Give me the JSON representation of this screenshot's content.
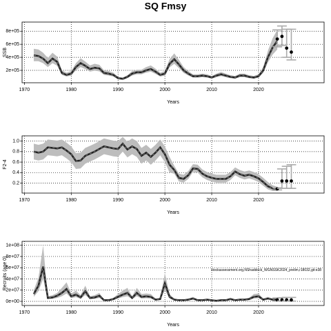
{
  "title": "SQ Fmsy",
  "chart_data": [
    {
      "type": "line",
      "xlabel": "Years",
      "ylabel": "SSB",
      "xlim": [
        1969.5,
        2034
      ],
      "xticks": [
        1970,
        1980,
        1990,
        2000,
        2010,
        2020
      ],
      "ylim": [
        10000,
        940000
      ],
      "yticks": [
        {
          "value": 200000,
          "label": "2e+05"
        },
        {
          "value": 400000,
          "label": "4e+05"
        },
        {
          "value": 600000,
          "label": "6e+05"
        },
        {
          "value": 800000,
          "label": "8e+05"
        }
      ],
      "grid": true,
      "color": "#222222",
      "band_color": "#bdbdbd",
      "x": [
        1972,
        1973,
        1974,
        1975,
        1976,
        1977,
        1978,
        1979,
        1980,
        1981,
        1982,
        1983,
        1984,
        1985,
        1986,
        1987,
        1988,
        1989,
        1990,
        1991,
        1992,
        1993,
        1994,
        1995,
        1996,
        1997,
        1998,
        1999,
        2000,
        2001,
        2002,
        2003,
        2004,
        2005,
        2006,
        2007,
        2008,
        2009,
        2010,
        2011,
        2012,
        2013,
        2014,
        2015,
        2016,
        2017,
        2018,
        2019,
        2020,
        2021,
        2022,
        2023,
        2024
      ],
      "values": [
        430000,
        420000,
        380000,
        310000,
        380000,
        330000,
        160000,
        130000,
        150000,
        250000,
        310000,
        270000,
        220000,
        240000,
        230000,
        160000,
        150000,
        130000,
        80000,
        70000,
        100000,
        150000,
        170000,
        170000,
        200000,
        220000,
        180000,
        130000,
        150000,
        300000,
        370000,
        290000,
        200000,
        150000,
        110000,
        110000,
        120000,
        110000,
        90000,
        120000,
        140000,
        120000,
        100000,
        90000,
        120000,
        120000,
        100000,
        90000,
        110000,
        200000,
        400000,
        550000,
        650000
      ],
      "lower": [
        340000,
        340000,
        310000,
        250000,
        310000,
        270000,
        130000,
        105000,
        120000,
        200000,
        250000,
        220000,
        180000,
        195000,
        185000,
        130000,
        120000,
        105000,
        65000,
        55000,
        80000,
        120000,
        140000,
        140000,
        165000,
        180000,
        145000,
        105000,
        120000,
        245000,
        300000,
        235000,
        160000,
        120000,
        90000,
        90000,
        95000,
        90000,
        72000,
        95000,
        112000,
        95000,
        80000,
        72000,
        95000,
        95000,
        80000,
        72000,
        88000,
        160000,
        320000,
        440000,
        520000
      ],
      "upper": [
        530000,
        520000,
        470000,
        390000,
        470000,
        410000,
        200000,
        165000,
        190000,
        310000,
        385000,
        335000,
        275000,
        300000,
        285000,
        200000,
        190000,
        165000,
        100000,
        90000,
        125000,
        190000,
        210000,
        210000,
        250000,
        275000,
        225000,
        165000,
        190000,
        370000,
        460000,
        360000,
        250000,
        190000,
        140000,
        140000,
        150000,
        140000,
        115000,
        150000,
        175000,
        150000,
        125000,
        115000,
        150000,
        150000,
        125000,
        115000,
        140000,
        250000,
        500000,
        690000,
        820000
      ],
      "points": {
        "x": [
          2024,
          2025,
          2026,
          2027
        ],
        "values": [
          680000,
          720000,
          540000,
          480000
        ],
        "lower": [
          560000,
          580000,
          400000,
          360000
        ],
        "upper": [
          820000,
          880000,
          830000,
          830000
        ]
      }
    },
    {
      "type": "line",
      "xlabel": "Years",
      "ylabel": "F2-4",
      "xlim": [
        1969.5,
        2034
      ],
      "xticks": [
        1970,
        1980,
        1990,
        2000,
        2010,
        2020
      ],
      "ylim": [
        0.01,
        1.1
      ],
      "yticks": [
        0.2,
        0.4,
        0.6,
        0.8,
        {
          "value": 1,
          "label": "1.0"
        }
      ],
      "grid": true,
      "color": "#222222",
      "band_color": "#bdbdbd",
      "x": [
        1972,
        1973,
        1974,
        1975,
        1976,
        1977,
        1978,
        1979,
        1980,
        1981,
        1982,
        1983,
        1984,
        1985,
        1986,
        1987,
        1988,
        1989,
        1990,
        1991,
        1992,
        1993,
        1994,
        1995,
        1996,
        1997,
        1998,
        1999,
        2000,
        2001,
        2002,
        2003,
        2004,
        2005,
        2006,
        2007,
        2008,
        2009,
        2010,
        2011,
        2012,
        2013,
        2014,
        2015,
        2016,
        2017,
        2018,
        2019,
        2020,
        2021,
        2022,
        2023,
        2024
      ],
      "values": [
        0.8,
        0.78,
        0.8,
        0.88,
        0.87,
        0.86,
        0.88,
        0.82,
        0.75,
        0.62,
        0.63,
        0.72,
        0.76,
        0.8,
        0.85,
        0.9,
        0.88,
        0.86,
        0.85,
        0.95,
        0.84,
        0.9,
        0.85,
        0.72,
        0.78,
        0.7,
        0.78,
        0.88,
        0.75,
        0.55,
        0.45,
        0.3,
        0.28,
        0.35,
        0.48,
        0.47,
        0.38,
        0.33,
        0.3,
        0.28,
        0.28,
        0.28,
        0.33,
        0.42,
        0.37,
        0.34,
        0.36,
        0.33,
        0.29,
        0.22,
        0.14,
        0.1,
        0.09
      ],
      "lower": [
        0.65,
        0.63,
        0.65,
        0.73,
        0.72,
        0.71,
        0.73,
        0.67,
        0.6,
        0.47,
        0.48,
        0.57,
        0.61,
        0.65,
        0.7,
        0.75,
        0.73,
        0.71,
        0.7,
        0.8,
        0.69,
        0.75,
        0.7,
        0.57,
        0.63,
        0.55,
        0.63,
        0.73,
        0.6,
        0.4,
        0.38,
        0.23,
        0.21,
        0.28,
        0.41,
        0.4,
        0.31,
        0.26,
        0.23,
        0.21,
        0.21,
        0.21,
        0.26,
        0.35,
        0.3,
        0.27,
        0.29,
        0.26,
        0.22,
        0.15,
        0.08,
        0.05,
        0.05
      ],
      "upper": [
        0.95,
        0.93,
        0.95,
        1.03,
        1.02,
        1.01,
        1.03,
        0.97,
        0.9,
        0.77,
        0.78,
        0.87,
        0.91,
        0.95,
        1.0,
        1.05,
        1.03,
        1.01,
        1.0,
        1.08,
        0.99,
        1.05,
        1.0,
        0.87,
        0.93,
        0.85,
        0.93,
        1.03,
        0.9,
        0.7,
        0.53,
        0.38,
        0.36,
        0.43,
        0.56,
        0.55,
        0.46,
        0.41,
        0.38,
        0.36,
        0.36,
        0.36,
        0.41,
        0.5,
        0.45,
        0.42,
        0.44,
        0.41,
        0.37,
        0.3,
        0.22,
        0.16,
        0.13
      ],
      "points": {
        "x": [
          2024,
          2025,
          2026,
          2027
        ],
        "values": [
          0.09,
          0.24,
          0.24,
          0.24
        ],
        "lower": [
          0.07,
          0.1,
          0.1,
          0.1
        ],
        "upper": [
          0.11,
          0.47,
          0.52,
          0.55
        ]
      }
    },
    {
      "type": "line",
      "xlabel": "Years",
      "ylabel": "Recruits (age 0)",
      "annotation": "stockassessment.org,NShaddock_WGNSSK2024_prelim,r18032,git:e38",
      "xlim": [
        1969.5,
        2034
      ],
      "xticks": [
        1970,
        1980,
        1990,
        2000,
        2010,
        2020
      ],
      "ylim": [
        -7400000,
        107000000
      ],
      "yticks": [
        {
          "value": 0,
          "label": "0e+00"
        },
        {
          "value": 20000000,
          "label": "2e+07"
        },
        {
          "value": 40000000,
          "label": "4e+07"
        },
        {
          "value": 60000000,
          "label": "6e+07"
        },
        {
          "value": 80000000,
          "label": "8e+07"
        },
        {
          "value": 100000000,
          "label": "1e+08"
        }
      ],
      "grid": true,
      "color": "#222222",
      "band_color": "#bdbdbd",
      "x": [
        1972,
        1973,
        1974,
        1975,
        1976,
        1977,
        1978,
        1979,
        1980,
        1981,
        1982,
        1983,
        1984,
        1985,
        1986,
        1987,
        1988,
        1989,
        1990,
        1991,
        1992,
        1993,
        1994,
        1995,
        1996,
        1997,
        1998,
        1999,
        2000,
        2001,
        2002,
        2003,
        2004,
        2005,
        2006,
        2007,
        2008,
        2009,
        2010,
        2011,
        2012,
        2013,
        2014,
        2015,
        2016,
        2017,
        2018,
        2019,
        2020,
        2021,
        2022,
        2023,
        2024
      ],
      "values": [
        13000000,
        28000000,
        62000000,
        6000000,
        7000000,
        10000000,
        15000000,
        22000000,
        9000000,
        12000000,
        7000000,
        18000000,
        6000000,
        7000000,
        10000000,
        2000000,
        2000000,
        4000000,
        8000000,
        12000000,
        15000000,
        6000000,
        15000000,
        8000000,
        9000000,
        8000000,
        3000000,
        4000000,
        32000000,
        8000000,
        3000000,
        2000000,
        2000000,
        3000000,
        5000000,
        2000000,
        2000000,
        3000000,
        2000000,
        1000000,
        2000000,
        2000000,
        4000000,
        2000000,
        3000000,
        3000000,
        4000000,
        8000000,
        9000000,
        3000000,
        5000000,
        3000000,
        3000000
      ],
      "lower": [
        8000000,
        18000000,
        40000000,
        4000000,
        4500000,
        6000000,
        9000000,
        14000000,
        5500000,
        7500000,
        4500000,
        11000000,
        4000000,
        4500000,
        6000000,
        1200000,
        1200000,
        2500000,
        5000000,
        7500000,
        9000000,
        4000000,
        9000000,
        5000000,
        5500000,
        5000000,
        1800000,
        2500000,
        20000000,
        5000000,
        1800000,
        1200000,
        1200000,
        1800000,
        3000000,
        1200000,
        1200000,
        1800000,
        1200000,
        600000,
        1200000,
        1200000,
        2500000,
        1200000,
        1800000,
        1800000,
        2500000,
        5000000,
        5500000,
        1800000,
        3000000,
        1800000,
        1800000
      ],
      "upper": [
        20000000,
        42000000,
        100000000,
        9000000,
        11000000,
        15000000,
        24000000,
        34000000,
        14000000,
        19000000,
        11000000,
        28000000,
        9000000,
        11000000,
        15000000,
        3200000,
        3200000,
        6400000,
        13000000,
        19000000,
        24000000,
        9000000,
        24000000,
        13000000,
        14000000,
        13000000,
        4800000,
        6400000,
        50000000,
        13000000,
        4800000,
        3200000,
        3200000,
        4800000,
        8000000,
        3200000,
        3200000,
        4800000,
        3200000,
        1600000,
        3200000,
        3200000,
        6400000,
        3200000,
        4800000,
        4800000,
        6400000,
        13000000,
        14000000,
        4800000,
        8000000,
        4800000,
        4800000
      ],
      "points": {
        "x": [
          2024,
          2025,
          2026,
          2027
        ],
        "values": [
          2500000,
          2500000,
          2500000,
          2500000
        ],
        "lower": [
          500000,
          500000,
          500000,
          500000
        ],
        "upper": [
          6000000,
          6500000,
          7000000,
          7000000
        ]
      }
    }
  ]
}
